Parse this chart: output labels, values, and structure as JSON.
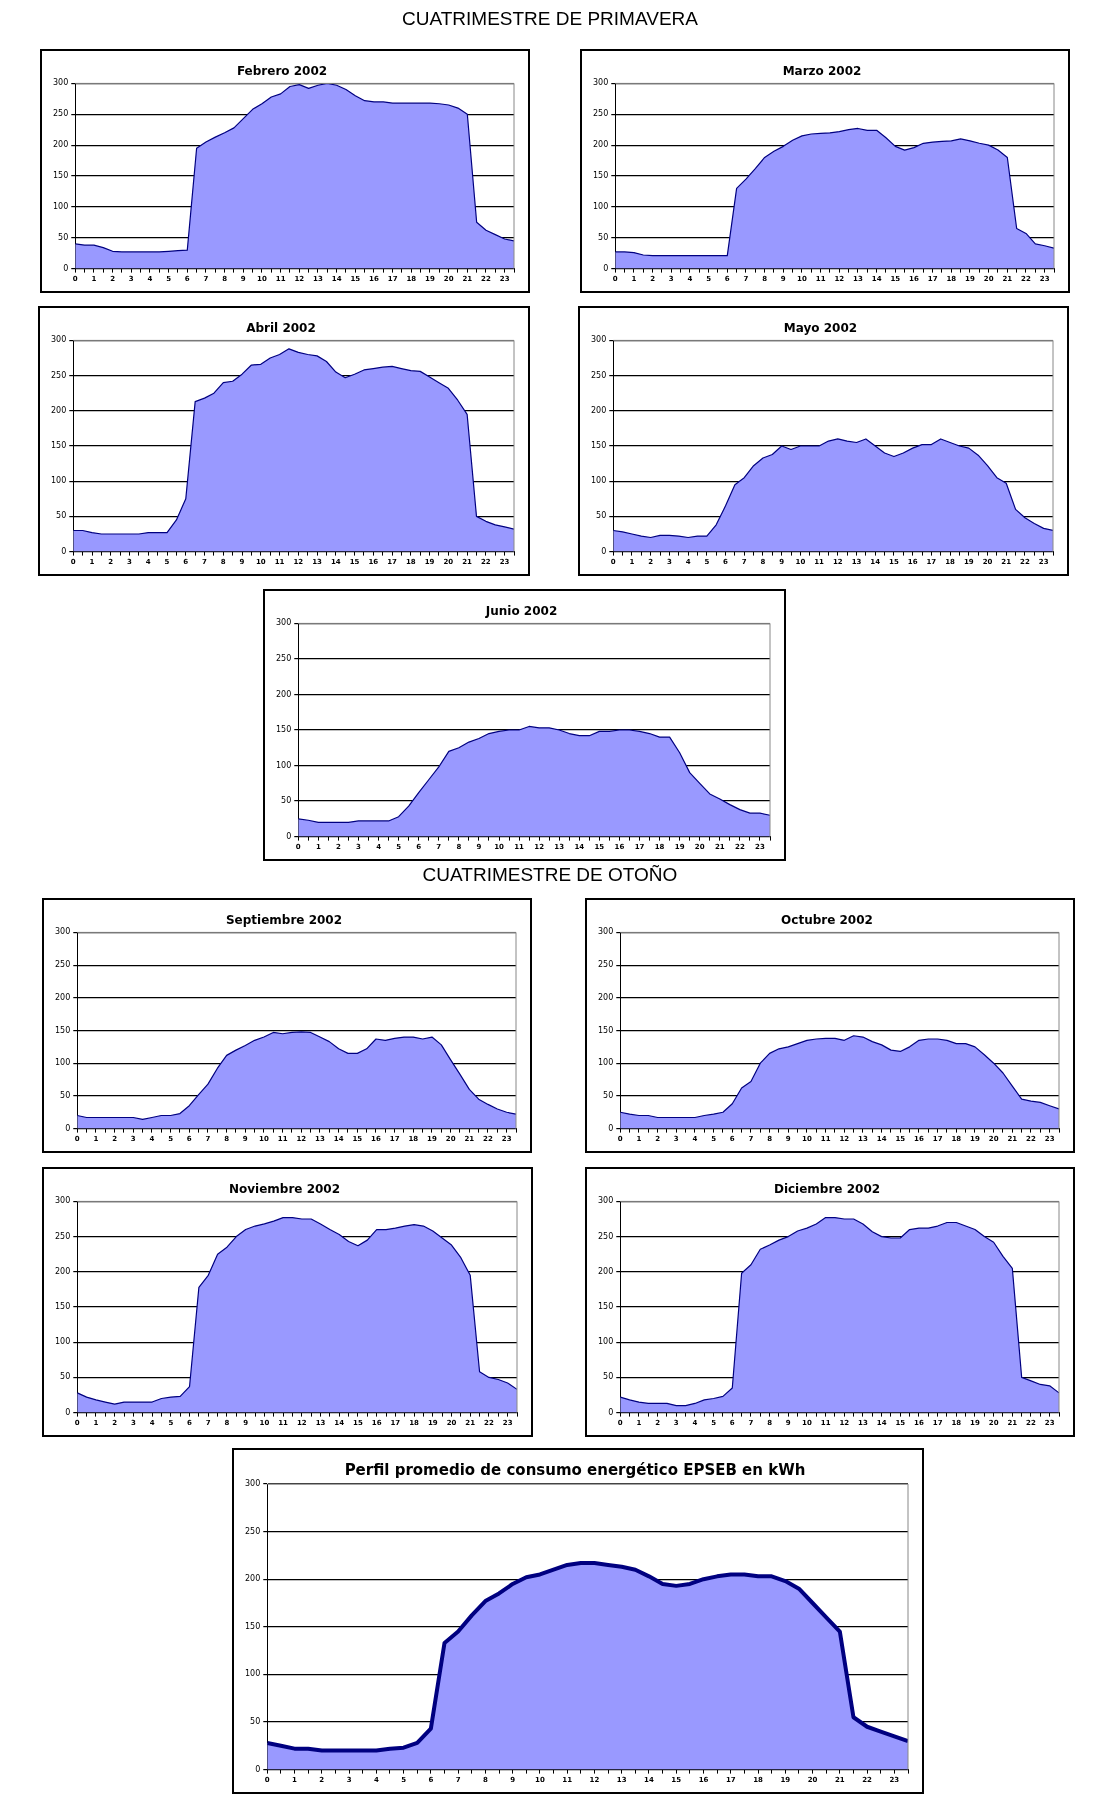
{
  "chart_data": [
    {
      "type": "other",
      "title": "CUATRIMESTRE DE PRIMAVERA"
    },
    {
      "type": "area",
      "title": "Febrero 2002",
      "color": "#9999ff",
      "ylim": [
        0,
        300
      ],
      "yticks": [
        0,
        50,
        100,
        150,
        200,
        250,
        300
      ],
      "grid": "y",
      "xlim": [
        0,
        23.5
      ],
      "xticks": [
        0,
        {
          "value": 0.5,
          "label": null
        },
        1,
        {
          "value": 1.5,
          "label": null
        },
        2,
        {
          "value": 2.5,
          "label": null
        },
        3,
        {
          "value": 3.5,
          "label": null
        },
        4,
        {
          "value": 4.5,
          "label": null
        },
        5,
        {
          "value": 5.5,
          "label": null
        },
        6,
        {
          "value": 6.5,
          "label": null
        },
        7,
        {
          "value": 7.5,
          "label": null
        },
        8,
        {
          "value": 8.5,
          "label": null
        },
        9,
        {
          "value": 9.5,
          "label": null
        },
        10,
        {
          "value": 10.5,
          "label": null
        },
        11,
        {
          "value": 11.5,
          "label": null
        },
        12,
        {
          "value": 12.5,
          "label": null
        },
        13,
        {
          "value": 13.5,
          "label": null
        },
        14,
        {
          "value": 14.5,
          "label": null
        },
        15,
        {
          "value": 15.5,
          "label": null
        },
        16,
        {
          "value": 16.5,
          "label": null
        },
        17,
        {
          "value": 17.5,
          "label": null
        },
        18,
        {
          "value": 18.5,
          "label": null
        },
        19,
        {
          "value": 19.5,
          "label": null
        },
        20,
        {
          "value": 20.5,
          "label": null
        },
        21,
        {
          "value": 21.5,
          "label": null
        },
        22,
        {
          "value": 22.5,
          "label": null
        },
        23,
        {
          "value": 23.5,
          "label": null
        }
      ],
      "x": [
        0,
        0.5,
        1,
        1.5,
        2,
        2.5,
        3,
        3.5,
        4,
        4.5,
        5,
        5.5,
        6,
        6.5,
        7,
        7.5,
        8,
        8.5,
        9,
        9.5,
        10,
        10.5,
        11,
        11.5,
        12,
        12.5,
        13,
        13.5,
        14,
        14.5,
        15,
        15.5,
        16,
        16.5,
        17,
        17.5,
        18,
        18.5,
        19,
        19.5,
        20,
        20.5,
        21,
        21.5,
        22,
        22.5,
        23,
        23.5
      ],
      "values": [
        40,
        38,
        38,
        34,
        28,
        27,
        27,
        27,
        27,
        27,
        28,
        29,
        30,
        195,
        205,
        213,
        220,
        228,
        243,
        258,
        267,
        278,
        283,
        295,
        298,
        292,
        297,
        300,
        297,
        290,
        280,
        272,
        270,
        270,
        268,
        268,
        268,
        268,
        268,
        267,
        265,
        260,
        250,
        75,
        62,
        55,
        48,
        45
      ]
    },
    {
      "type": "area",
      "title": "Marzo 2002",
      "color": "#9999ff",
      "ylim": [
        0,
        300
      ],
      "yticks": [
        0,
        50,
        100,
        150,
        200,
        250,
        300
      ],
      "grid": "y",
      "xlim": [
        0,
        23.5
      ],
      "xticks": [
        0,
        {
          "value": 0.5,
          "label": null
        },
        1,
        {
          "value": 1.5,
          "label": null
        },
        2,
        {
          "value": 2.5,
          "label": null
        },
        3,
        {
          "value": 3.5,
          "label": null
        },
        4,
        {
          "value": 4.5,
          "label": null
        },
        5,
        {
          "value": 5.5,
          "label": null
        },
        6,
        {
          "value": 6.5,
          "label": null
        },
        7,
        {
          "value": 7.5,
          "label": null
        },
        8,
        {
          "value": 8.5,
          "label": null
        },
        9,
        {
          "value": 9.5,
          "label": null
        },
        10,
        {
          "value": 10.5,
          "label": null
        },
        11,
        {
          "value": 11.5,
          "label": null
        },
        12,
        {
          "value": 12.5,
          "label": null
        },
        13,
        {
          "value": 13.5,
          "label": null
        },
        14,
        {
          "value": 14.5,
          "label": null
        },
        15,
        {
          "value": 15.5,
          "label": null
        },
        16,
        {
          "value": 16.5,
          "label": null
        },
        17,
        {
          "value": 17.5,
          "label": null
        },
        18,
        {
          "value": 18.5,
          "label": null
        },
        19,
        {
          "value": 19.5,
          "label": null
        },
        20,
        {
          "value": 20.5,
          "label": null
        },
        21,
        {
          "value": 21.5,
          "label": null
        },
        22,
        {
          "value": 22.5,
          "label": null
        },
        23,
        {
          "value": 23.5,
          "label": null
        }
      ],
      "x": [
        0,
        0.5,
        1,
        1.5,
        2,
        2.5,
        3,
        3.5,
        4,
        4.5,
        5,
        5.5,
        6,
        6.5,
        7,
        7.5,
        8,
        8.5,
        9,
        9.5,
        10,
        10.5,
        11,
        11.5,
        12,
        12.5,
        13,
        13.5,
        14,
        14.5,
        15,
        15.5,
        16,
        16.5,
        17,
        17.5,
        18,
        18.5,
        19,
        19.5,
        20,
        20.5,
        21,
        21.5,
        22,
        22.5,
        23,
        23.5
      ],
      "values": [
        27,
        27,
        26,
        22,
        21,
        21,
        21,
        21,
        21,
        21,
        21,
        21,
        21,
        130,
        145,
        162,
        180,
        190,
        198,
        208,
        215,
        218,
        219,
        220,
        222,
        225,
        227,
        224,
        224,
        212,
        198,
        192,
        196,
        203,
        205,
        206,
        207,
        210,
        207,
        203,
        200,
        192,
        180,
        65,
        57,
        40,
        37,
        33
      ]
    },
    {
      "type": "area",
      "title": "Abril 2002",
      "color": "#9999ff",
      "ylim": [
        0,
        300
      ],
      "yticks": [
        0,
        50,
        100,
        150,
        200,
        250,
        300
      ],
      "grid": "y",
      "xlim": [
        0,
        23.5
      ],
      "xticks": [
        0,
        {
          "value": 0.5,
          "label": null
        },
        1,
        {
          "value": 1.5,
          "label": null
        },
        2,
        {
          "value": 2.5,
          "label": null
        },
        3,
        {
          "value": 3.5,
          "label": null
        },
        4,
        {
          "value": 4.5,
          "label": null
        },
        5,
        {
          "value": 5.5,
          "label": null
        },
        6,
        {
          "value": 6.5,
          "label": null
        },
        7,
        {
          "value": 7.5,
          "label": null
        },
        8,
        {
          "value": 8.5,
          "label": null
        },
        9,
        {
          "value": 9.5,
          "label": null
        },
        10,
        {
          "value": 10.5,
          "label": null
        },
        11,
        {
          "value": 11.5,
          "label": null
        },
        12,
        {
          "value": 12.5,
          "label": null
        },
        13,
        {
          "value": 13.5,
          "label": null
        },
        14,
        {
          "value": 14.5,
          "label": null
        },
        15,
        {
          "value": 15.5,
          "label": null
        },
        16,
        {
          "value": 16.5,
          "label": null
        },
        17,
        {
          "value": 17.5,
          "label": null
        },
        18,
        {
          "value": 18.5,
          "label": null
        },
        19,
        {
          "value": 19.5,
          "label": null
        },
        20,
        {
          "value": 20.5,
          "label": null
        },
        21,
        {
          "value": 21.5,
          "label": null
        },
        22,
        {
          "value": 22.5,
          "label": null
        },
        23,
        {
          "value": 23.5,
          "label": null
        }
      ],
      "x": [
        0,
        0.5,
        1,
        1.5,
        2,
        2.5,
        3,
        3.5,
        4,
        4.5,
        5,
        5.5,
        6,
        6.5,
        7,
        7.5,
        8,
        8.5,
        9,
        9.5,
        10,
        10.5,
        11,
        11.5,
        12,
        12.5,
        13,
        13.5,
        14,
        14.5,
        15,
        15.5,
        16,
        16.5,
        17,
        17.5,
        18,
        18.5,
        19,
        19.5,
        20,
        20.5,
        21,
        21.5,
        22,
        22.5,
        23,
        23.5
      ],
      "values": [
        30,
        30,
        27,
        25,
        25,
        25,
        25,
        25,
        27,
        27,
        27,
        45,
        75,
        213,
        218,
        225,
        240,
        242,
        252,
        265,
        266,
        275,
        280,
        288,
        283,
        280,
        278,
        270,
        255,
        247,
        252,
        258,
        260,
        262,
        263,
        260,
        257,
        256,
        248,
        240,
        232,
        215,
        195,
        50,
        43,
        38,
        35,
        32
      ]
    },
    {
      "type": "area",
      "title": "Mayo 2002",
      "color": "#9999ff",
      "ylim": [
        0,
        300
      ],
      "yticks": [
        0,
        50,
        100,
        150,
        200,
        250,
        300
      ],
      "grid": "y",
      "xlim": [
        0,
        23.5
      ],
      "xticks": [
        0,
        {
          "value": 0.5,
          "label": null
        },
        1,
        {
          "value": 1.5,
          "label": null
        },
        2,
        {
          "value": 2.5,
          "label": null
        },
        3,
        {
          "value": 3.5,
          "label": null
        },
        4,
        {
          "value": 4.5,
          "label": null
        },
        5,
        {
          "value": 5.5,
          "label": null
        },
        6,
        {
          "value": 6.5,
          "label": null
        },
        7,
        {
          "value": 7.5,
          "label": null
        },
        8,
        {
          "value": 8.5,
          "label": null
        },
        9,
        {
          "value": 9.5,
          "label": null
        },
        10,
        {
          "value": 10.5,
          "label": null
        },
        11,
        {
          "value": 11.5,
          "label": null
        },
        12,
        {
          "value": 12.5,
          "label": null
        },
        13,
        {
          "value": 13.5,
          "label": null
        },
        14,
        {
          "value": 14.5,
          "label": null
        },
        15,
        {
          "value": 15.5,
          "label": null
        },
        16,
        {
          "value": 16.5,
          "label": null
        },
        17,
        {
          "value": 17.5,
          "label": null
        },
        18,
        {
          "value": 18.5,
          "label": null
        },
        19,
        {
          "value": 19.5,
          "label": null
        },
        20,
        {
          "value": 20.5,
          "label": null
        },
        21,
        {
          "value": 21.5,
          "label": null
        },
        22,
        {
          "value": 22.5,
          "label": null
        },
        23,
        {
          "value": 23.5,
          "label": null
        }
      ],
      "x": [
        0,
        0.5,
        1,
        1.5,
        2,
        2.5,
        3,
        3.5,
        4,
        4.5,
        5,
        5.5,
        6,
        6.5,
        7,
        7.5,
        8,
        8.5,
        9,
        9.5,
        10,
        10.5,
        11,
        11.5,
        12,
        12.5,
        13,
        13.5,
        14,
        14.5,
        15,
        15.5,
        16,
        16.5,
        17,
        17.5,
        18,
        18.5,
        19,
        19.5,
        20,
        20.5,
        21,
        21.5,
        22,
        22.5,
        23,
        23.5
      ],
      "values": [
        30,
        28,
        25,
        22,
        20,
        23,
        23,
        22,
        20,
        22,
        22,
        38,
        65,
        95,
        105,
        122,
        133,
        138,
        150,
        145,
        150,
        150,
        150,
        157,
        160,
        157,
        155,
        160,
        150,
        140,
        135,
        140,
        147,
        152,
        152,
        160,
        155,
        150,
        147,
        137,
        122,
        105,
        97,
        60,
        48,
        40,
        33,
        30
      ]
    },
    {
      "type": "area",
      "title": "Junio 2002",
      "color": "#9999ff",
      "ylim": [
        0,
        300
      ],
      "yticks": [
        0,
        50,
        100,
        150,
        200,
        250,
        300
      ],
      "grid": "y",
      "xlim": [
        0,
        23.5
      ],
      "xticks": [
        0,
        {
          "value": 0.5,
          "label": null
        },
        1,
        {
          "value": 1.5,
          "label": null
        },
        2,
        {
          "value": 2.5,
          "label": null
        },
        3,
        {
          "value": 3.5,
          "label": null
        },
        4,
        {
          "value": 4.5,
          "label": null
        },
        5,
        {
          "value": 5.5,
          "label": null
        },
        6,
        {
          "value": 6.5,
          "label": null
        },
        7,
        {
          "value": 7.5,
          "label": null
        },
        8,
        {
          "value": 8.5,
          "label": null
        },
        9,
        {
          "value": 9.5,
          "label": null
        },
        10,
        {
          "value": 10.5,
          "label": null
        },
        11,
        {
          "value": 11.5,
          "label": null
        },
        12,
        {
          "value": 12.5,
          "label": null
        },
        13,
        {
          "value": 13.5,
          "label": null
        },
        14,
        {
          "value": 14.5,
          "label": null
        },
        15,
        {
          "value": 15.5,
          "label": null
        },
        16,
        {
          "value": 16.5,
          "label": null
        },
        17,
        {
          "value": 17.5,
          "label": null
        },
        18,
        {
          "value": 18.5,
          "label": null
        },
        19,
        {
          "value": 19.5,
          "label": null
        },
        20,
        {
          "value": 20.5,
          "label": null
        },
        21,
        {
          "value": 21.5,
          "label": null
        },
        22,
        {
          "value": 22.5,
          "label": null
        },
        23,
        {
          "value": 23.5,
          "label": null
        }
      ],
      "x": [
        0,
        0.5,
        1,
        1.5,
        2,
        2.5,
        3,
        3.5,
        4,
        4.5,
        5,
        5.5,
        6,
        6.5,
        7,
        7.5,
        8,
        8.5,
        9,
        9.5,
        10,
        10.5,
        11,
        11.5,
        12,
        12.5,
        13,
        13.5,
        14,
        14.5,
        15,
        15.5,
        16,
        16.5,
        17,
        17.5,
        18,
        18.5,
        19,
        19.5,
        20,
        20.5,
        21,
        21.5,
        22,
        22.5,
        23,
        23.5
      ],
      "values": [
        25,
        23,
        20,
        20,
        20,
        20,
        22,
        22,
        22,
        22,
        28,
        43,
        62,
        80,
        98,
        120,
        125,
        133,
        138,
        145,
        148,
        150,
        150,
        155,
        153,
        153,
        150,
        145,
        142,
        142,
        148,
        148,
        150,
        150,
        148,
        145,
        140,
        140,
        118,
        90,
        75,
        60,
        53,
        45,
        38,
        33,
        33,
        30
      ]
    },
    {
      "type": "other",
      "title": "CUATRIMESTRE DE OTOÑO"
    },
    {
      "type": "area",
      "title": "Septiembre 2002",
      "color": "#9999ff",
      "ylim": [
        0,
        300
      ],
      "yticks": [
        0,
        50,
        100,
        150,
        200,
        250,
        300
      ],
      "grid": "y",
      "xlim": [
        0,
        23.5
      ],
      "xticks": [
        0,
        {
          "value": 0.5,
          "label": null
        },
        1,
        {
          "value": 1.5,
          "label": null
        },
        2,
        {
          "value": 2.5,
          "label": null
        },
        3,
        {
          "value": 3.5,
          "label": null
        },
        4,
        {
          "value": 4.5,
          "label": null
        },
        5,
        {
          "value": 5.5,
          "label": null
        },
        6,
        {
          "value": 6.5,
          "label": null
        },
        7,
        {
          "value": 7.5,
          "label": null
        },
        8,
        {
          "value": 8.5,
          "label": null
        },
        9,
        {
          "value": 9.5,
          "label": null
        },
        10,
        {
          "value": 10.5,
          "label": null
        },
        11,
        {
          "value": 11.5,
          "label": null
        },
        12,
        {
          "value": 12.5,
          "label": null
        },
        13,
        {
          "value": 13.5,
          "label": null
        },
        14,
        {
          "value": 14.5,
          "label": null
        },
        15,
        {
          "value": 15.5,
          "label": null
        },
        16,
        {
          "value": 16.5,
          "label": null
        },
        17,
        {
          "value": 17.5,
          "label": null
        },
        18,
        {
          "value": 18.5,
          "label": null
        },
        19,
        {
          "value": 19.5,
          "label": null
        },
        20,
        {
          "value": 20.5,
          "label": null
        },
        21,
        {
          "value": 21.5,
          "label": null
        },
        22,
        {
          "value": 22.5,
          "label": null
        },
        23,
        {
          "value": 23.5,
          "label": null
        }
      ],
      "x": [
        0,
        0.5,
        1,
        1.5,
        2,
        2.5,
        3,
        3.5,
        4,
        4.5,
        5,
        5.5,
        6,
        6.5,
        7,
        7.5,
        8,
        8.5,
        9,
        9.5,
        10,
        10.5,
        11,
        11.5,
        12,
        12.5,
        13,
        13.5,
        14,
        14.5,
        15,
        15.5,
        16,
        16.5,
        17,
        17.5,
        18,
        18.5,
        19,
        19.5,
        20,
        20.5,
        21,
        21.5,
        22,
        22.5,
        23,
        23.5
      ],
      "values": [
        20,
        17,
        17,
        17,
        17,
        17,
        17,
        14,
        17,
        20,
        20,
        23,
        35,
        52,
        68,
        92,
        112,
        120,
        127,
        135,
        140,
        147,
        145,
        147,
        148,
        147,
        140,
        133,
        122,
        115,
        115,
        122,
        137,
        135,
        138,
        140,
        140,
        137,
        140,
        128,
        105,
        83,
        60,
        45,
        37,
        30,
        25,
        22
      ]
    },
    {
      "type": "area",
      "title": "Octubre 2002",
      "color": "#9999ff",
      "ylim": [
        0,
        300
      ],
      "yticks": [
        0,
        50,
        100,
        150,
        200,
        250,
        300
      ],
      "grid": "y",
      "xlim": [
        0,
        23.5
      ],
      "xticks": [
        0,
        {
          "value": 0.5,
          "label": null
        },
        1,
        {
          "value": 1.5,
          "label": null
        },
        2,
        {
          "value": 2.5,
          "label": null
        },
        3,
        {
          "value": 3.5,
          "label": null
        },
        4,
        {
          "value": 4.5,
          "label": null
        },
        5,
        {
          "value": 5.5,
          "label": null
        },
        6,
        {
          "value": 6.5,
          "label": null
        },
        7,
        {
          "value": 7.5,
          "label": null
        },
        8,
        {
          "value": 8.5,
          "label": null
        },
        9,
        {
          "value": 9.5,
          "label": null
        },
        10,
        {
          "value": 10.5,
          "label": null
        },
        11,
        {
          "value": 11.5,
          "label": null
        },
        12,
        {
          "value": 12.5,
          "label": null
        },
        13,
        {
          "value": 13.5,
          "label": null
        },
        14,
        {
          "value": 14.5,
          "label": null
        },
        15,
        {
          "value": 15.5,
          "label": null
        },
        16,
        {
          "value": 16.5,
          "label": null
        },
        17,
        {
          "value": 17.5,
          "label": null
        },
        18,
        {
          "value": 18.5,
          "label": null
        },
        19,
        {
          "value": 19.5,
          "label": null
        },
        20,
        {
          "value": 20.5,
          "label": null
        },
        21,
        {
          "value": 21.5,
          "label": null
        },
        22,
        {
          "value": 22.5,
          "label": null
        },
        23,
        {
          "value": 23.5,
          "label": null
        }
      ],
      "x": [
        0,
        0.5,
        1,
        1.5,
        2,
        2.5,
        3,
        3.5,
        4,
        4.5,
        5,
        5.5,
        6,
        6.5,
        7,
        7.5,
        8,
        8.5,
        9,
        9.5,
        10,
        10.5,
        11,
        11.5,
        12,
        12.5,
        13,
        13.5,
        14,
        14.5,
        15,
        15.5,
        16,
        16.5,
        17,
        17.5,
        18,
        18.5,
        19,
        19.5,
        20,
        20.5,
        21,
        21.5,
        22,
        22.5,
        23,
        23.5
      ],
      "values": [
        25,
        22,
        20,
        20,
        17,
        17,
        17,
        17,
        17,
        20,
        22,
        25,
        38,
        62,
        72,
        100,
        115,
        122,
        125,
        130,
        135,
        137,
        138,
        138,
        135,
        142,
        140,
        133,
        128,
        120,
        118,
        125,
        135,
        137,
        137,
        135,
        130,
        130,
        125,
        113,
        100,
        85,
        65,
        45,
        42,
        40,
        35,
        30
      ]
    },
    {
      "type": "area",
      "title": "Noviembre 2002",
      "color": "#9999ff",
      "ylim": [
        0,
        300
      ],
      "yticks": [
        0,
        50,
        100,
        150,
        200,
        250,
        300
      ],
      "grid": "y",
      "xlim": [
        0,
        23.5
      ],
      "xticks": [
        0,
        {
          "value": 0.5,
          "label": null
        },
        1,
        {
          "value": 1.5,
          "label": null
        },
        2,
        {
          "value": 2.5,
          "label": null
        },
        3,
        {
          "value": 3.5,
          "label": null
        },
        4,
        {
          "value": 4.5,
          "label": null
        },
        5,
        {
          "value": 5.5,
          "label": null
        },
        6,
        {
          "value": 6.5,
          "label": null
        },
        7,
        {
          "value": 7.5,
          "label": null
        },
        8,
        {
          "value": 8.5,
          "label": null
        },
        9,
        {
          "value": 9.5,
          "label": null
        },
        10,
        {
          "value": 10.5,
          "label": null
        },
        11,
        {
          "value": 11.5,
          "label": null
        },
        12,
        {
          "value": 12.5,
          "label": null
        },
        13,
        {
          "value": 13.5,
          "label": null
        },
        14,
        {
          "value": 14.5,
          "label": null
        },
        15,
        {
          "value": 15.5,
          "label": null
        },
        16,
        {
          "value": 16.5,
          "label": null
        },
        17,
        {
          "value": 17.5,
          "label": null
        },
        18,
        {
          "value": 18.5,
          "label": null
        },
        19,
        {
          "value": 19.5,
          "label": null
        },
        20,
        {
          "value": 20.5,
          "label": null
        },
        21,
        {
          "value": 21.5,
          "label": null
        },
        22,
        {
          "value": 22.5,
          "label": null
        },
        23,
        {
          "value": 23.5,
          "label": null
        }
      ],
      "x": [
        0,
        0.5,
        1,
        1.5,
        2,
        2.5,
        3,
        3.5,
        4,
        4.5,
        5,
        5.5,
        6,
        6.5,
        7,
        7.5,
        8,
        8.5,
        9,
        9.5,
        10,
        10.5,
        11,
        11.5,
        12,
        12.5,
        13,
        13.5,
        14,
        14.5,
        15,
        15.5,
        16,
        16.5,
        17,
        17.5,
        18,
        18.5,
        19,
        19.5,
        20,
        20.5,
        21,
        21.5,
        22,
        22.5,
        23,
        23.5
      ],
      "values": [
        28,
        22,
        18,
        15,
        12,
        15,
        15,
        15,
        15,
        20,
        22,
        23,
        37,
        178,
        195,
        225,
        235,
        250,
        260,
        265,
        268,
        272,
        277,
        277,
        275,
        275,
        268,
        260,
        253,
        243,
        237,
        245,
        260,
        260,
        262,
        265,
        267,
        265,
        258,
        248,
        238,
        220,
        195,
        58,
        50,
        47,
        42,
        33
      ]
    },
    {
      "type": "area",
      "title": "Diciembre 2002",
      "color": "#9999ff",
      "ylim": [
        0,
        300
      ],
      "yticks": [
        0,
        50,
        100,
        150,
        200,
        250,
        300
      ],
      "grid": "y",
      "xlim": [
        0,
        23.5
      ],
      "xticks": [
        0,
        {
          "value": 0.5,
          "label": null
        },
        1,
        {
          "value": 1.5,
          "label": null
        },
        2,
        {
          "value": 2.5,
          "label": null
        },
        3,
        {
          "value": 3.5,
          "label": null
        },
        4,
        {
          "value": 4.5,
          "label": null
        },
        5,
        {
          "value": 5.5,
          "label": null
        },
        6,
        {
          "value": 6.5,
          "label": null
        },
        7,
        {
          "value": 7.5,
          "label": null
        },
        8,
        {
          "value": 8.5,
          "label": null
        },
        9,
        {
          "value": 9.5,
          "label": null
        },
        10,
        {
          "value": 10.5,
          "label": null
        },
        11,
        {
          "value": 11.5,
          "label": null
        },
        12,
        {
          "value": 12.5,
          "label": null
        },
        13,
        {
          "value": 13.5,
          "label": null
        },
        14,
        {
          "value": 14.5,
          "label": null
        },
        15,
        {
          "value": 15.5,
          "label": null
        },
        16,
        {
          "value": 16.5,
          "label": null
        },
        17,
        {
          "value": 17.5,
          "label": null
        },
        18,
        {
          "value": 18.5,
          "label": null
        },
        19,
        {
          "value": 19.5,
          "label": null
        },
        20,
        {
          "value": 20.5,
          "label": null
        },
        21,
        {
          "value": 21.5,
          "label": null
        },
        22,
        {
          "value": 22.5,
          "label": null
        },
        23,
        {
          "value": 23.5,
          "label": null
        }
      ],
      "x": [
        0,
        0.5,
        1,
        1.5,
        2,
        2.5,
        3,
        3.5,
        4,
        4.5,
        5,
        5.5,
        6,
        6.5,
        7,
        7.5,
        8,
        8.5,
        9,
        9.5,
        10,
        10.5,
        11,
        11.5,
        12,
        12.5,
        13,
        13.5,
        14,
        14.5,
        15,
        15.5,
        16,
        16.5,
        17,
        17.5,
        18,
        18.5,
        19,
        19.5,
        20,
        20.5,
        21,
        21.5,
        22,
        22.5,
        23,
        23.5
      ],
      "values": [
        22,
        18,
        15,
        13,
        13,
        13,
        10,
        10,
        13,
        18,
        20,
        23,
        35,
        198,
        210,
        232,
        238,
        245,
        250,
        258,
        262,
        268,
        277,
        277,
        275,
        275,
        268,
        257,
        250,
        248,
        248,
        260,
        262,
        262,
        265,
        270,
        270,
        265,
        260,
        250,
        242,
        222,
        205,
        50,
        45,
        40,
        38,
        28
      ]
    },
    {
      "type": "area",
      "title": "Perfil promedio de consumo energético EPSEB en kWh",
      "color": "#9999ff",
      "ylim": [
        0,
        300
      ],
      "yticks": [
        0,
        50,
        100,
        150,
        200,
        250,
        300
      ],
      "grid": "y",
      "xlim": [
        0,
        23.5
      ],
      "xticks": [
        0,
        {
          "value": 0.5,
          "label": null
        },
        1,
        {
          "value": 1.5,
          "label": null
        },
        2,
        {
          "value": 2.5,
          "label": null
        },
        3,
        {
          "value": 3.5,
          "label": null
        },
        4,
        {
          "value": 4.5,
          "label": null
        },
        5,
        {
          "value": 5.5,
          "label": null
        },
        6,
        {
          "value": 6.5,
          "label": null
        },
        7,
        {
          "value": 7.5,
          "label": null
        },
        8,
        {
          "value": 8.5,
          "label": null
        },
        9,
        {
          "value": 9.5,
          "label": null
        },
        10,
        {
          "value": 10.5,
          "label": null
        },
        11,
        {
          "value": 11.5,
          "label": null
        },
        12,
        {
          "value": 12.5,
          "label": null
        },
        13,
        {
          "value": 13.5,
          "label": null
        },
        14,
        {
          "value": 14.5,
          "label": null
        },
        15,
        {
          "value": 15.5,
          "label": null
        },
        16,
        {
          "value": 16.5,
          "label": null
        },
        17,
        {
          "value": 17.5,
          "label": null
        },
        18,
        {
          "value": 18.5,
          "label": null
        },
        19,
        {
          "value": 19.5,
          "label": null
        },
        20,
        {
          "value": 20.5,
          "label": null
        },
        21,
        {
          "value": 21.5,
          "label": null
        },
        22,
        {
          "value": 22.5,
          "label": null
        },
        23,
        {
          "value": 23.5,
          "label": null
        }
      ],
      "x": [
        0,
        0.5,
        1,
        1.5,
        2,
        2.5,
        3,
        3.5,
        4,
        4.5,
        5,
        5.5,
        6,
        6.5,
        7,
        7.5,
        8,
        8.5,
        9,
        9.5,
        10,
        10.5,
        11,
        11.5,
        12,
        12.5,
        13,
        13.5,
        14,
        14.5,
        15,
        15.5,
        16,
        16.5,
        17,
        17.5,
        18,
        18.5,
        19,
        19.5,
        20,
        20.5,
        21,
        21.5,
        22,
        22.5,
        23,
        23.5
      ],
      "values": [
        28,
        25,
        22,
        22,
        20,
        20,
        20,
        20,
        20,
        22,
        23,
        28,
        43,
        133,
        145,
        162,
        177,
        185,
        195,
        202,
        205,
        210,
        215,
        217,
        217,
        215,
        213,
        210,
        203,
        195,
        193,
        195,
        200,
        203,
        205,
        205,
        203,
        203,
        198,
        190,
        175,
        160,
        145,
        55,
        45,
        40,
        35,
        30
      ]
    }
  ]
}
